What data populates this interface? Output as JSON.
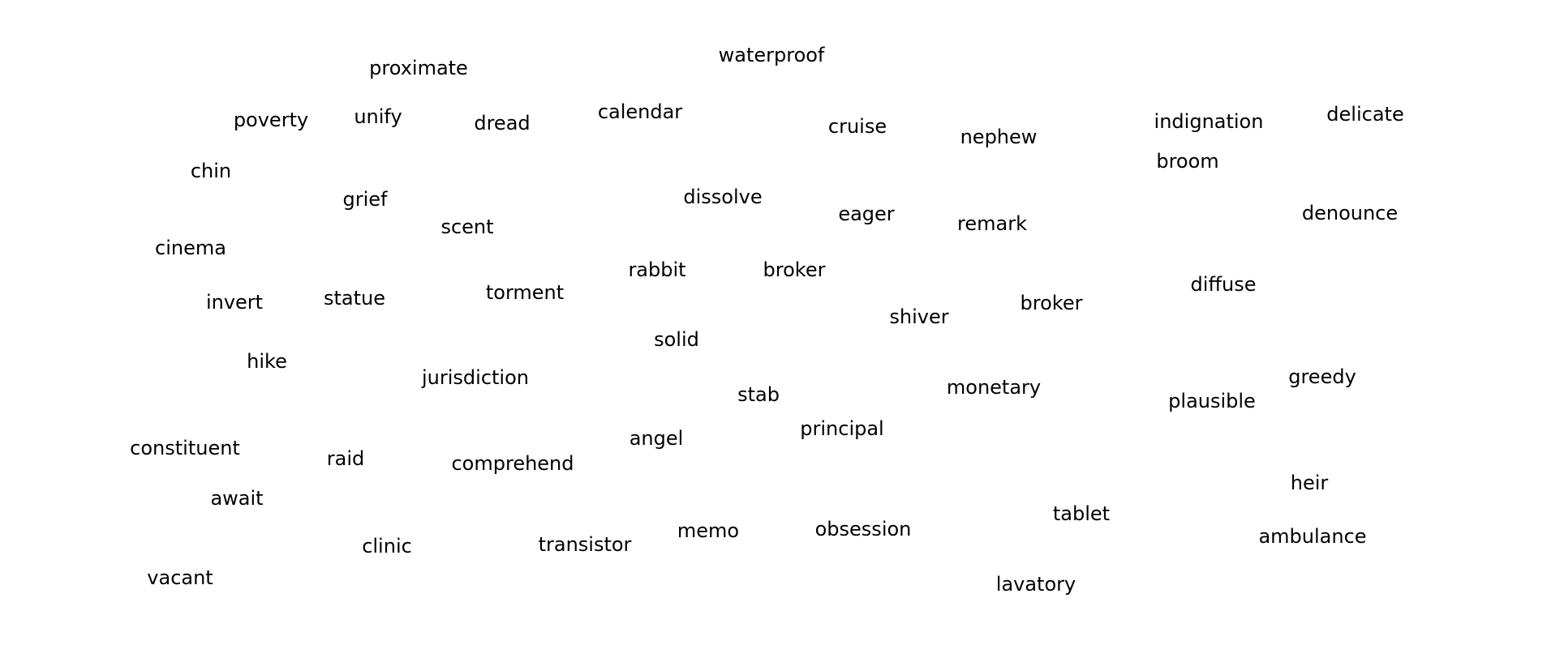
{
  "words": [
    {
      "id": "proximate",
      "text": "proximate"
    },
    {
      "id": "waterproof",
      "text": "waterproof"
    },
    {
      "id": "poverty",
      "text": "poverty"
    },
    {
      "id": "unify",
      "text": "unify"
    },
    {
      "id": "dread",
      "text": "dread"
    },
    {
      "id": "calendar",
      "text": "calendar"
    },
    {
      "id": "cruise",
      "text": "cruise"
    },
    {
      "id": "nephew",
      "text": "nephew"
    },
    {
      "id": "indignation",
      "text": "indignation"
    },
    {
      "id": "delicate",
      "text": "delicate"
    },
    {
      "id": "chin",
      "text": "chin"
    },
    {
      "id": "broom",
      "text": "broom"
    },
    {
      "id": "grief",
      "text": "grief"
    },
    {
      "id": "dissolve",
      "text": "dissolve"
    },
    {
      "id": "scent",
      "text": "scent"
    },
    {
      "id": "eager",
      "text": "eager"
    },
    {
      "id": "remark",
      "text": "remark"
    },
    {
      "id": "denounce",
      "text": "denounce"
    },
    {
      "id": "cinema",
      "text": "cinema"
    },
    {
      "id": "rabbit",
      "text": "rabbit"
    },
    {
      "id": "broker-1",
      "text": "broker"
    },
    {
      "id": "diffuse",
      "text": "diffuse"
    },
    {
      "id": "torment",
      "text": "torment"
    },
    {
      "id": "invert",
      "text": "invert"
    },
    {
      "id": "statue",
      "text": "statue"
    },
    {
      "id": "broker-2",
      "text": "broker"
    },
    {
      "id": "shiver",
      "text": "shiver"
    },
    {
      "id": "solid",
      "text": "solid"
    },
    {
      "id": "hike",
      "text": "hike"
    },
    {
      "id": "jurisdiction",
      "text": "jurisdiction"
    },
    {
      "id": "monetary",
      "text": "monetary"
    },
    {
      "id": "greedy",
      "text": "greedy"
    },
    {
      "id": "stab",
      "text": "stab"
    },
    {
      "id": "plausible",
      "text": "plausible"
    },
    {
      "id": "principal",
      "text": "principal"
    },
    {
      "id": "angel",
      "text": "angel"
    },
    {
      "id": "constituent",
      "text": "constituent"
    },
    {
      "id": "raid",
      "text": "raid"
    },
    {
      "id": "comprehend",
      "text": "comprehend"
    },
    {
      "id": "heir",
      "text": "heir"
    },
    {
      "id": "await",
      "text": "await"
    },
    {
      "id": "tablet",
      "text": "tablet"
    },
    {
      "id": "obsession",
      "text": "obsession"
    },
    {
      "id": "memo",
      "text": "memo"
    },
    {
      "id": "ambulance",
      "text": "ambulance"
    },
    {
      "id": "transistor",
      "text": "transistor"
    },
    {
      "id": "clinic",
      "text": "clinic"
    },
    {
      "id": "vacant",
      "text": "vacant"
    },
    {
      "id": "lavatory",
      "text": "lavatory"
    }
  ]
}
